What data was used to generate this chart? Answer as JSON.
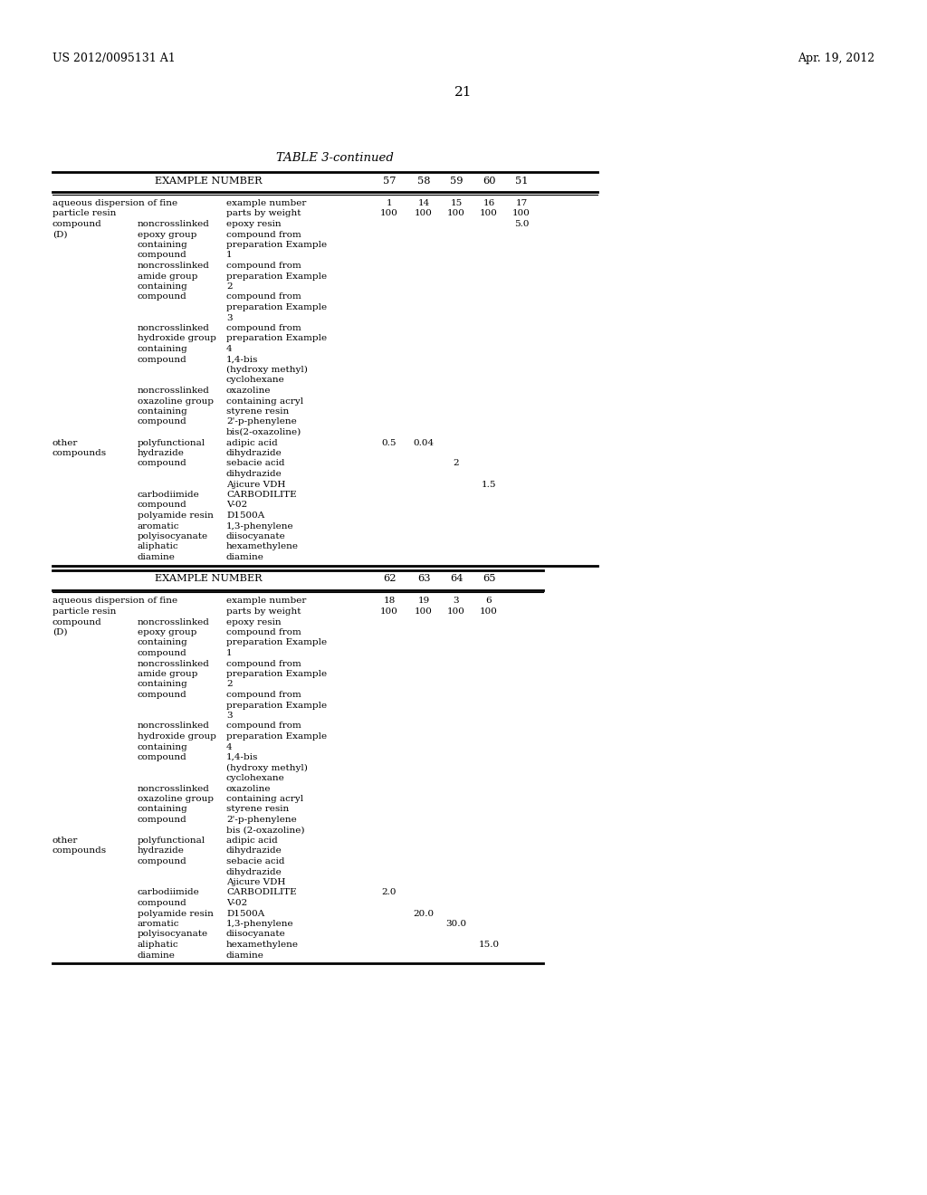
{
  "page_number": "21",
  "patent_left": "US 2012/0095131 A1",
  "patent_right": "Apr. 19, 2012",
  "table_title": "TABLE 3-continued",
  "background_color": "#ffffff",
  "text_color": "#000000",
  "table1_rows": [
    [
      "aqueous dispersion of fine",
      "",
      "example number",
      "1",
      "14",
      "15",
      "16",
      "17"
    ],
    [
      "particle resin",
      "",
      "parts by weight",
      "100",
      "100",
      "100",
      "100",
      "100"
    ],
    [
      "compound",
      "noncrosslinked",
      "epoxy resin",
      "",
      "",
      "",
      "",
      "5.0"
    ],
    [
      "(D)",
      "epoxy group",
      "compound from",
      "",
      "",
      "",
      "",
      ""
    ],
    [
      "",
      "containing",
      "preparation Example",
      "",
      "",
      "",
      "",
      ""
    ],
    [
      "",
      "compound",
      "1",
      "",
      "",
      "",
      "",
      ""
    ],
    [
      "",
      "noncrosslinked",
      "compound from",
      "",
      "",
      "",
      "",
      ""
    ],
    [
      "",
      "amide group",
      "preparation Example",
      "",
      "",
      "",
      "",
      ""
    ],
    [
      "",
      "containing",
      "2",
      "",
      "",
      "",
      "",
      ""
    ],
    [
      "",
      "compound",
      "compound from",
      "",
      "",
      "",
      "",
      ""
    ],
    [
      "",
      "",
      "preparation Example",
      "",
      "",
      "",
      "",
      ""
    ],
    [
      "",
      "",
      "3",
      "",
      "",
      "",
      "",
      ""
    ],
    [
      "",
      "noncrosslinked",
      "compound from",
      "",
      "",
      "",
      "",
      ""
    ],
    [
      "",
      "hydroxide group",
      "preparation Example",
      "",
      "",
      "",
      "",
      ""
    ],
    [
      "",
      "containing",
      "4",
      "",
      "",
      "",
      "",
      ""
    ],
    [
      "",
      "compound",
      "1,4-bis",
      "",
      "",
      "",
      "",
      ""
    ],
    [
      "",
      "",
      "(hydroxy methyl)",
      "",
      "",
      "",
      "",
      ""
    ],
    [
      "",
      "",
      "cyclohexane",
      "",
      "",
      "",
      "",
      ""
    ],
    [
      "",
      "noncrosslinked",
      "oxazoline",
      "",
      "",
      "",
      "",
      ""
    ],
    [
      "",
      "oxazoline group",
      "containing acryl",
      "",
      "",
      "",
      "",
      ""
    ],
    [
      "",
      "containing",
      "styrene resin",
      "",
      "",
      "",
      "",
      ""
    ],
    [
      "",
      "compound",
      "2'-p-phenylene",
      "",
      "",
      "",
      "",
      ""
    ],
    [
      "",
      "",
      "bis(2-oxazoline)",
      "",
      "",
      "",
      "",
      ""
    ],
    [
      "other",
      "polyfunctional",
      "adipic acid",
      "0.5",
      "0.04",
      "",
      "",
      ""
    ],
    [
      "compounds",
      "hydrazide",
      "dihydrazide",
      "",
      "",
      "",
      "",
      ""
    ],
    [
      "",
      "compound",
      "sebacie acid",
      "",
      "",
      "2",
      "",
      ""
    ],
    [
      "",
      "",
      "dihydrazide",
      "",
      "",
      "",
      "",
      ""
    ],
    [
      "",
      "",
      "Ajicure VDH",
      "",
      "",
      "",
      "1.5",
      ""
    ],
    [
      "",
      "carbodiimide",
      "CARBODILITE",
      "",
      "",
      "",
      "",
      ""
    ],
    [
      "",
      "compound",
      "V-02",
      "",
      "",
      "",
      "",
      ""
    ],
    [
      "",
      "polyamide resin",
      "D1500A",
      "",
      "",
      "",
      "",
      ""
    ],
    [
      "",
      "aromatic",
      "1,3-phenylene",
      "",
      "",
      "",
      "",
      ""
    ],
    [
      "",
      "polyisocyanate",
      "diisocyanate",
      "",
      "",
      "",
      "",
      ""
    ],
    [
      "",
      "aliphatic",
      "hexamethylene",
      "",
      "",
      "",
      "",
      ""
    ],
    [
      "",
      "diamine",
      "diamine",
      "",
      "",
      "",
      "",
      ""
    ]
  ],
  "table2_rows": [
    [
      "aqueous dispersion of fine",
      "",
      "example number",
      "18",
      "19",
      "3",
      "6"
    ],
    [
      "particle resin",
      "",
      "parts by weight",
      "100",
      "100",
      "100",
      "100"
    ],
    [
      "compound",
      "noncrosslinked",
      "epoxy resin",
      "",
      "",
      "",
      ""
    ],
    [
      "(D)",
      "epoxy group",
      "compound from",
      "",
      "",
      "",
      ""
    ],
    [
      "",
      "containing",
      "preparation Example",
      "",
      "",
      "",
      ""
    ],
    [
      "",
      "compound",
      "1",
      "",
      "",
      "",
      ""
    ],
    [
      "",
      "noncrosslinked",
      "compound from",
      "",
      "",
      "",
      ""
    ],
    [
      "",
      "amide group",
      "preparation Example",
      "",
      "",
      "",
      ""
    ],
    [
      "",
      "containing",
      "2",
      "",
      "",
      "",
      ""
    ],
    [
      "",
      "compound",
      "compound from",
      "",
      "",
      "",
      ""
    ],
    [
      "",
      "",
      "preparation Example",
      "",
      "",
      "",
      ""
    ],
    [
      "",
      "",
      "3",
      "",
      "",
      "",
      ""
    ],
    [
      "",
      "noncrosslinked",
      "compound from",
      "",
      "",
      "",
      ""
    ],
    [
      "",
      "hydroxide group",
      "preparation Example",
      "",
      "",
      "",
      ""
    ],
    [
      "",
      "containing",
      "4",
      "",
      "",
      "",
      ""
    ],
    [
      "",
      "compound",
      "1,4-bis",
      "",
      "",
      "",
      ""
    ],
    [
      "",
      "",
      "(hydroxy methyl)",
      "",
      "",
      "",
      ""
    ],
    [
      "",
      "",
      "cyclohexane",
      "",
      "",
      "",
      ""
    ],
    [
      "",
      "noncrosslinked",
      "oxazoline",
      "",
      "",
      "",
      ""
    ],
    [
      "",
      "oxazoline group",
      "containing acryl",
      "",
      "",
      "",
      ""
    ],
    [
      "",
      "containing",
      "styrene resin",
      "",
      "",
      "",
      ""
    ],
    [
      "",
      "compound",
      "2'-p-phenylene",
      "",
      "",
      "",
      ""
    ],
    [
      "",
      "",
      "bis (2-oxazoline)",
      "",
      "",
      "",
      ""
    ],
    [
      "other",
      "polyfunctional",
      "adipic acid",
      "",
      "",
      "",
      ""
    ],
    [
      "compounds",
      "hydrazide",
      "dihydrazide",
      "",
      "",
      "",
      ""
    ],
    [
      "",
      "compound",
      "sebacie acid",
      "",
      "",
      "",
      ""
    ],
    [
      "",
      "",
      "dihydrazide",
      "",
      "",
      "",
      ""
    ],
    [
      "",
      "",
      "Ajicure VDH",
      "",
      "",
      "",
      ""
    ],
    [
      "",
      "carbodiimide",
      "CARBODILITE",
      "2.0",
      "",
      "",
      ""
    ],
    [
      "",
      "compound",
      "V-02",
      "",
      "",
      "",
      ""
    ],
    [
      "",
      "polyamide resin",
      "D1500A",
      "",
      "20.0",
      "",
      ""
    ],
    [
      "",
      "aromatic",
      "1,3-phenylene",
      "",
      "",
      "30.0",
      ""
    ],
    [
      "",
      "polyisocyanate",
      "diisocyanate",
      "",
      "",
      "",
      ""
    ],
    [
      "",
      "aliphatic",
      "hexamethylene",
      "",
      "",
      "",
      "15.0"
    ],
    [
      "",
      "diamine",
      "diamine",
      "",
      "",
      "",
      ""
    ]
  ]
}
